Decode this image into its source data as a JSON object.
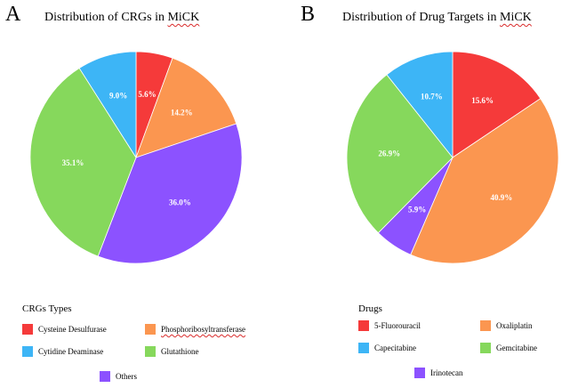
{
  "panels": [
    {
      "letter": "A",
      "title_prefix": "Distribution of CRGs in ",
      "title_suffix": "MiCK"
    },
    {
      "letter": "B",
      "title_prefix": "Distribution of Drug Targets in ",
      "title_suffix": "MiCK"
    }
  ],
  "legend_a": {
    "title": "CRGs Types",
    "items": [
      {
        "label": "Cysteine Desulfurase",
        "color": "#f53a3a"
      },
      {
        "label": "Phosphoribosyltransferase",
        "color": "#fb9650"
      },
      {
        "label": "Cytidine Deaminase",
        "color": "#3db5f6"
      },
      {
        "label": "Glutathione",
        "color": "#86d85c"
      },
      {
        "label": "Others",
        "color": "#8c52ff"
      }
    ]
  },
  "legend_b": {
    "title": "Drugs",
    "items": [
      {
        "label": "5-Fluorouracil",
        "color": "#f53a3a"
      },
      {
        "label": "Oxaliplatin",
        "color": "#fb9650"
      },
      {
        "label": "Capecitabine",
        "color": "#3db5f6"
      },
      {
        "label": "Gemcitabine",
        "color": "#86d85c"
      },
      {
        "label": "Irinotecan",
        "color": "#8c52ff"
      }
    ]
  },
  "chart_data": [
    {
      "type": "pie",
      "title": "Distribution of CRGs in MiCK",
      "slices": [
        {
          "label": "Cysteine Desulfurase",
          "value": 5.6,
          "text": "5.6%",
          "color": "#f53a3a"
        },
        {
          "label": "Phosphoribosyltransferase",
          "value": 14.2,
          "text": "14.2%",
          "color": "#fb9650"
        },
        {
          "label": "Others",
          "value": 36.0,
          "text": "36.0%",
          "color": "#8c52ff"
        },
        {
          "label": "Glutathione",
          "value": 35.1,
          "text": "35.1%",
          "color": "#86d85c"
        },
        {
          "label": "Cytidine Deaminase",
          "value": 9.0,
          "text": "9.0%",
          "color": "#3db5f6"
        }
      ]
    },
    {
      "type": "pie",
      "title": "Distribution of Drug Targets in MiCK",
      "slices": [
        {
          "label": "5-Fluorouracil",
          "value": 15.6,
          "text": "15.6%",
          "color": "#f53a3a"
        },
        {
          "label": "Oxaliplatin",
          "value": 40.9,
          "text": "40.9%",
          "color": "#fb9650"
        },
        {
          "label": "Irinotecan",
          "value": 5.9,
          "text": "5.9%",
          "color": "#8c52ff"
        },
        {
          "label": "Gemcitabine",
          "value": 26.9,
          "text": "26.9%",
          "color": "#86d85c"
        },
        {
          "label": "Capecitabine",
          "value": 10.7,
          "text": "10.7%",
          "color": "#3db5f6"
        }
      ]
    }
  ]
}
